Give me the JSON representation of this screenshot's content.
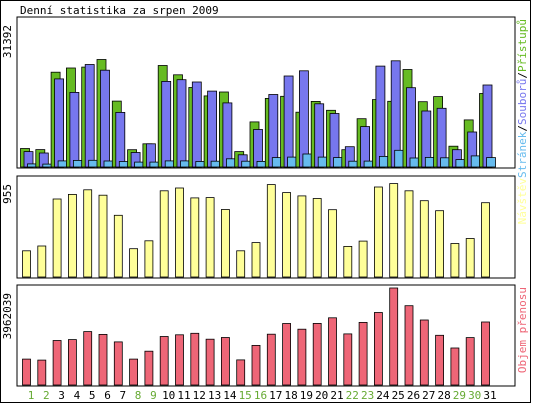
{
  "chart_data": [
    {
      "type": "bar",
      "title": "Denní statistika za srpen 2009",
      "max_label": "31392",
      "right_label_parts": [
        "Stránek",
        "/",
        "Souborů",
        "/",
        "Přístupů"
      ],
      "categories": [
        "1",
        "2",
        "3",
        "4",
        "5",
        "6",
        "7",
        "8",
        "9",
        "10",
        "11",
        "12",
        "13",
        "14",
        "15",
        "16",
        "17",
        "18",
        "19",
        "20",
        "21",
        "22",
        "23",
        "24",
        "25",
        "26",
        "27",
        "28",
        "29",
        "30",
        "31"
      ],
      "weekend_days": [
        "1",
        "2",
        "8",
        "9",
        "15",
        "16",
        "22",
        "23",
        "29",
        "30"
      ],
      "weekday_color": "#000000",
      "weekend_color": "#66aa33",
      "ylim": [
        0,
        31392
      ],
      "series": [
        {
          "name": "Přístupů",
          "color": "#66bb22",
          "values": [
            3952,
            3720,
            20248,
            21136,
            21336,
            22952,
            14080,
            3696,
            4952,
            21680,
            19680,
            16976,
            15184,
            16016,
            3296,
            9632,
            14656,
            15104,
            11712,
            14016,
            12112,
            3696,
            10320,
            14400,
            14032,
            20816,
            13952,
            15024,
            4448,
            10048,
            15696
          ]
        },
        {
          "name": "Souborů",
          "color": "#7777ee",
          "values": [
            3296,
            3000,
            18808,
            15936,
            21880,
            20680,
            11664,
            3088,
            4960,
            18272,
            18640,
            18160,
            16208,
            13696,
            2616,
            8000,
            15472,
            19424,
            20544,
            13496,
            11416,
            4336,
            8624,
            21552,
            22688,
            16944,
            11952,
            12528,
            3688,
            7464,
            17504
          ]
        },
        {
          "name": "Stránek",
          "color": "#66bbee",
          "values": [
            672,
            624,
            1296,
            1408,
            1424,
            1280,
            1168,
            1040,
            1040,
            1296,
            1312,
            1184,
            1232,
            1744,
            1232,
            1200,
            2016,
            2112,
            2784,
            2112,
            2016,
            1232,
            1264,
            2272,
            3568,
            1920,
            2048,
            1968,
            1584,
            2368,
            2016
          ]
        }
      ]
    },
    {
      "type": "bar",
      "max_label": "955",
      "right_label": "Návštěv",
      "ylim": [
        0,
        955
      ],
      "series": [
        {
          "name": "Návštěv",
          "color": "#ffff99",
          "values": [
            255,
            302,
            760,
            805,
            850,
            797,
            601,
            276,
            353,
            840,
            867,
            771,
            774,
            658,
            255,
            335,
            900,
            822,
            790,
            765,
            656,
            298,
            350,
            877,
            910,
            840,
            744,
            646,
            326,
            375,
            724
          ]
        }
      ]
    },
    {
      "type": "bar",
      "max_label": "3962039",
      "right_label": "Objem přenosu",
      "ylim": [
        0,
        3962039
      ],
      "series": [
        {
          "name": "Objem přenosu",
          "color": "#ee6677",
          "values": [
            1059380,
            1016245,
            1819130,
            1854510,
            2182500,
            2065500,
            1759350,
            1058540,
            1380320,
            1980720,
            2048790,
            2110500,
            1871800,
            1939890,
            1026650,
            1618330,
            2075800,
            2512500,
            2280500,
            2514250,
            2745700,
            2087240,
            2558000,
            2962860,
            3962039,
            3240750,
            2656000,
            2028580,
            1510240,
            1935620,
            2573330
          ]
        }
      ]
    }
  ]
}
